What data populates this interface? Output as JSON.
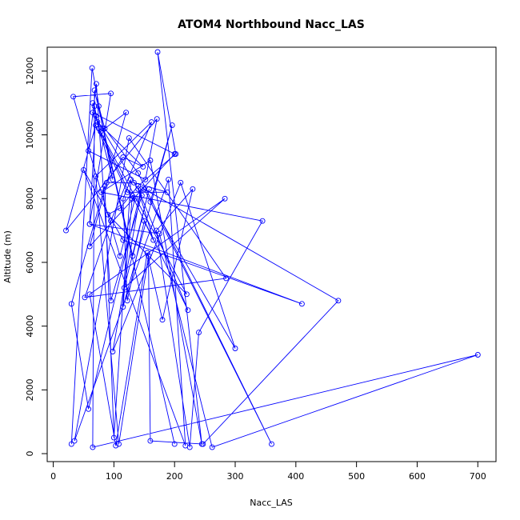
{
  "chart_data": {
    "type": "line",
    "title": "ATOM4 Northbound Nacc_LAS",
    "xlabel": "Nacc_LAS",
    "ylabel": "Altitude (m)",
    "xlim": [
      -10,
      730
    ],
    "ylim": [
      -250,
      12750
    ],
    "x_ticks": [
      0,
      100,
      200,
      300,
      400,
      500,
      600,
      700
    ],
    "y_ticks": [
      0,
      2000,
      4000,
      6000,
      8000,
      10000,
      12000
    ],
    "grid": false,
    "legend": "none",
    "series_color": "#0000ff",
    "markers": "open-circle",
    "series": [
      {
        "x": [
          30,
          64,
          98,
          65,
          68,
          73,
          148,
          115,
          88,
          133,
          188,
          122,
          70,
          21,
          171,
          152,
          58,
          71,
          95,
          146,
          65,
          200,
          60,
          120,
          78,
          220,
          90,
          110,
          140,
          202,
          172,
          245,
          160,
          79,
          135,
          110,
          33,
          95,
          60,
          70,
          75,
          130,
          115,
          196,
          160,
          300,
          210,
          98,
          145,
          58,
          30,
          85,
          100,
          128,
          115,
          122,
          150,
          165,
          140,
          222,
          130,
          345,
          240,
          225,
          170,
          230,
          180,
          155,
          103,
          60,
          283,
          117,
          158,
          131,
          68,
          65,
          700,
          262,
          175,
          60,
          410,
          115,
          50,
          218,
          190,
          35,
          125,
          285,
          52,
          95,
          162,
          70,
          108,
          157,
          160,
          247,
          470,
          150,
          360,
          140,
          85,
          75,
          82,
          200
        ],
        "y": [
          300,
          12100,
          8600,
          11000,
          10900,
          10400,
          9000,
          9300,
          8500,
          8500,
          8200,
          8200,
          10300,
          7000,
          10500,
          8600,
          9500,
          11600,
          4800,
          8100,
          10700,
          9400,
          6500,
          10700,
          10100,
          5000,
          7500,
          7700,
          8400,
          9400,
          12600,
          300,
          9200,
          8200,
          8000,
          6200,
          11200,
          11300,
          7200,
          10600,
          10200,
          8000,
          4600,
          10300,
          7900,
          3300,
          8500,
          3200,
          8300,
          1400,
          4700,
          8400,
          500,
          8600,
          8000,
          4800,
          7300,
          6700,
          8300,
          4500,
          8100,
          7300,
          3800,
          200,
          7000,
          8300,
          4200,
          6300,
          250,
          5000,
          8000,
          5200,
          8300,
          6200,
          11400,
          200,
          3100,
          200,
          6900,
          7200,
          4700,
          6700,
          8900,
          250,
          8600,
          400,
          9900,
          5500,
          4900,
          7300,
          10400,
          8700,
          300,
          6200,
          400,
          300,
          4800,
          8300,
          300,
          8800,
          10200,
          10900,
          10200,
          300
        ]
      }
    ]
  }
}
